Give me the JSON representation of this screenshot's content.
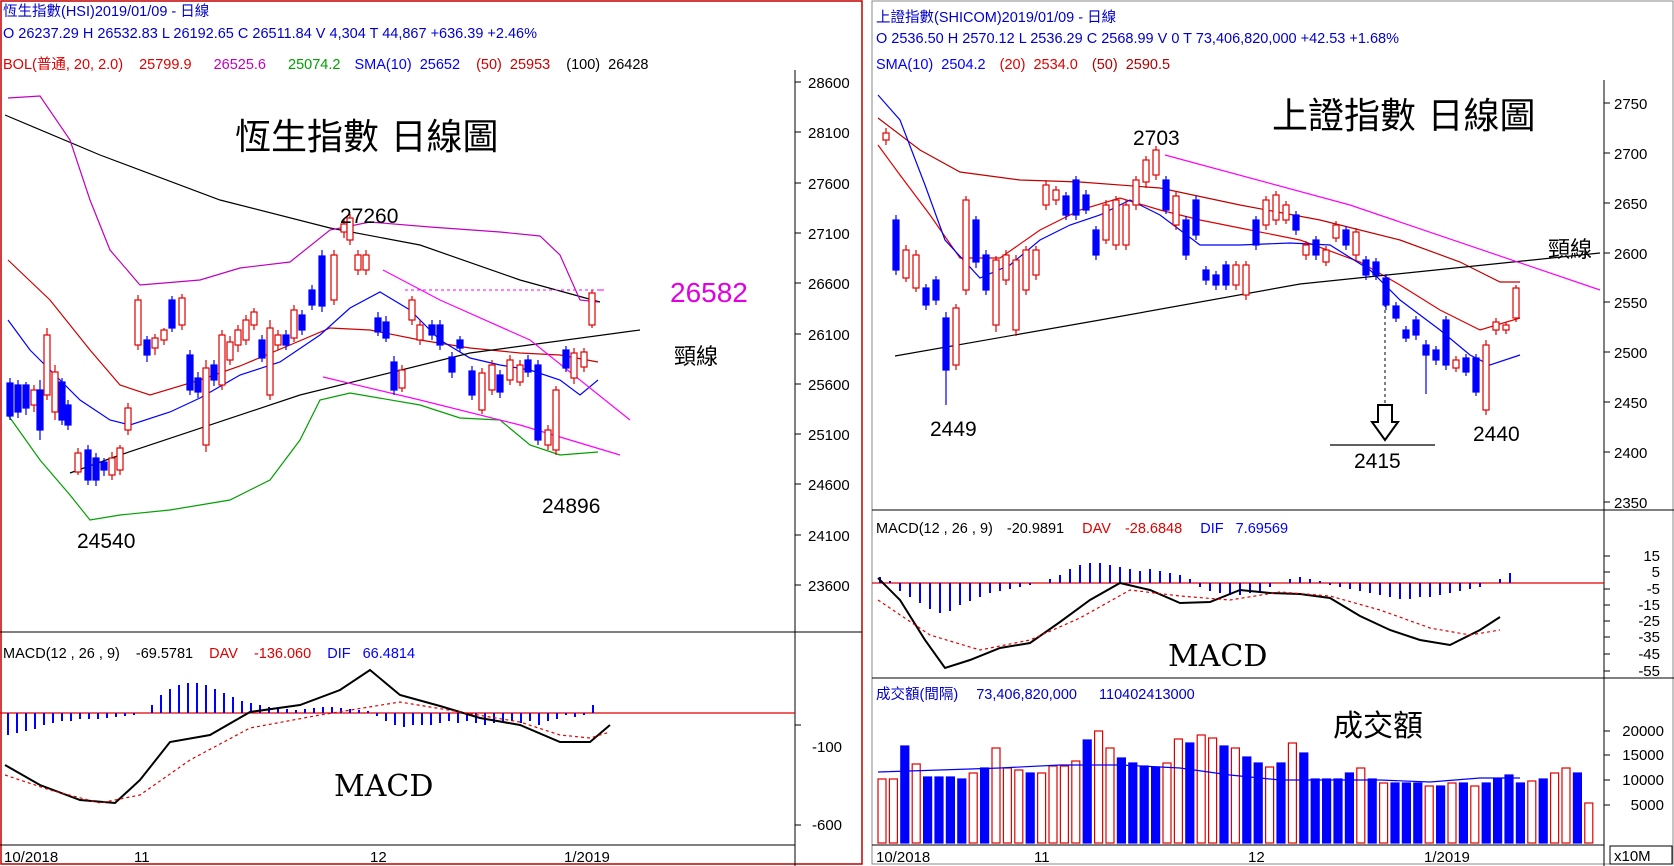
{
  "chart_data": [
    {
      "type": "candlestick",
      "title": "恆生指數 日線圖",
      "header_line1": "恆生指數(HSI)2019/01/09 - 日線",
      "header_ohlc": "O 26237.29 H 26532.83 L 26192.65 C 26511.84 V 4,304 T 44,867 +636.39 +2.46%",
      "bollinger": {
        "label": "BOL(普通, 20, 2.0)",
        "mid": "25799.9",
        "upper": "26525.6",
        "lower": "25074.2"
      },
      "sma": [
        {
          "label": "SMA(10)",
          "value": "25652"
        },
        {
          "label": "(50)",
          "value": "25953"
        },
        {
          "label": "(100)",
          "value": "26428"
        }
      ],
      "y_ticks": [
        "28600",
        "28100",
        "27600",
        "27100",
        "26600",
        "26100",
        "25600",
        "25100",
        "24600",
        "24100",
        "23600"
      ],
      "x_ticks": [
        "10/2018",
        "11",
        "12",
        "1/2019"
      ],
      "annotations": [
        "27260",
        "24540",
        "24896",
        "26582",
        "頸線"
      ],
      "macd": {
        "title": "MACD",
        "header": "MACD(12 , 26 , 9)",
        "value": "-69.5781",
        "dav_label": "DAV",
        "dav": "-136.060",
        "dif_label": "DIF",
        "dif": "66.4814",
        "y_ticks": [
          "-100",
          "-600"
        ]
      }
    },
    {
      "type": "candlestick",
      "title": "上證指數 日線圖",
      "header_line1": "上證指數(SHICOM)2019/01/09 - 日線",
      "header_ohlc": "O 2536.50 H 2570.12 L 2536.29 C 2568.99 V 0 T 73,406,820,000 +42.53 +1.68%",
      "sma": [
        {
          "label": "SMA(10)",
          "value": "2504.2"
        },
        {
          "label": "(20)",
          "value": "2534.0"
        },
        {
          "label": "(50)",
          "value": "2590.5"
        }
      ],
      "y_ticks": [
        "2750",
        "2700",
        "2650",
        "2600",
        "2550",
        "2500",
        "2450",
        "2400",
        "2350"
      ],
      "x_ticks": [
        "10/2018",
        "11",
        "12",
        "1/2019"
      ],
      "annotations": [
        "2703",
        "2449",
        "2415",
        "2440",
        "頸線"
      ],
      "macd": {
        "title": "MACD",
        "header": "MACD(12 , 26 , 9)",
        "value": "-20.9891",
        "dav_label": "DAV",
        "dav": "-28.6848",
        "dif_label": "DIF",
        "dif": "7.69569",
        "y_ticks": [
          "15",
          "5",
          "-5",
          "-15",
          "-25",
          "-35",
          "-45",
          "-55"
        ]
      },
      "volume": {
        "title": "成交額",
        "header": "成交額(間隔)",
        "value1": "73,406,820,000",
        "value2": "110402413000",
        "y_ticks": [
          "20000",
          "15000",
          "10000",
          "5000"
        ],
        "unit": "x10M"
      }
    }
  ]
}
